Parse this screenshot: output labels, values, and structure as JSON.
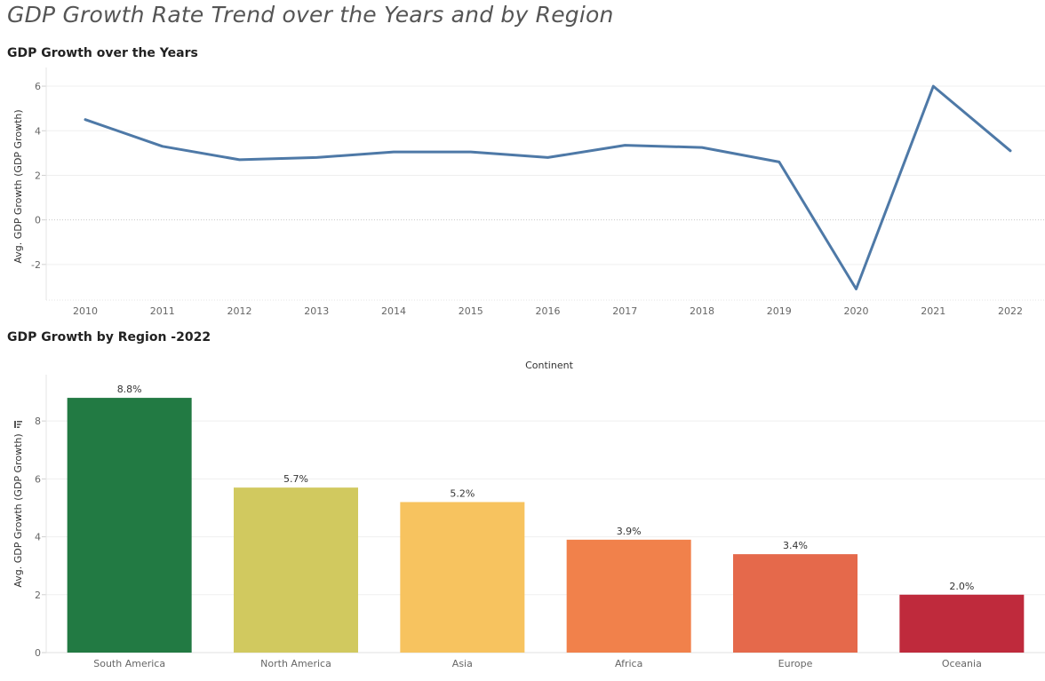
{
  "dashboard": {
    "title": "GDP Growth Rate Trend over the Years and by Region"
  },
  "chart_data": [
    {
      "type": "line",
      "title": "GDP Growth over the Years",
      "xlabel": "",
      "ylabel": "Avg. GDP Growth (GDP Growth)",
      "x": [
        "2010",
        "2011",
        "2012",
        "2013",
        "2014",
        "2015",
        "2016",
        "2017",
        "2018",
        "2019",
        "2020",
        "2021",
        "2022"
      ],
      "series": [
        {
          "values": [
            4.5,
            3.3,
            2.7,
            2.8,
            3.05,
            3.05,
            2.8,
            3.35,
            3.25,
            2.6,
            -3.1,
            6.0,
            3.1
          ]
        }
      ],
      "ylim": [
        -3.6,
        6.6
      ],
      "yticks": [
        -2,
        0,
        2,
        4,
        6
      ],
      "grid": true,
      "zero_line": true,
      "line_color": "#4e79a7"
    },
    {
      "type": "bar",
      "title": "GDP Growth by Region -2022",
      "column_header": "Continent",
      "xlabel": "",
      "ylabel": "Avg. GDP Growth (GDP Growth)",
      "sort_icon": "sort-descending-icon",
      "categories": [
        "South America",
        "North America",
        "Asia",
        "Africa",
        "Europe",
        "Oceania"
      ],
      "values": [
        8.8,
        5.7,
        5.2,
        3.9,
        3.4,
        2.0
      ],
      "data_labels": [
        "8.8%",
        "5.7%",
        "5.2%",
        "3.9%",
        "3.4%",
        "2.0%"
      ],
      "colors": [
        "#227a43",
        "#d1c95f",
        "#f7c35f",
        "#f1814b",
        "#e5694b",
        "#bf2a3c"
      ],
      "ylim": [
        0,
        9.6
      ],
      "yticks": [
        0,
        2,
        4,
        6,
        8
      ],
      "grid": true
    }
  ]
}
